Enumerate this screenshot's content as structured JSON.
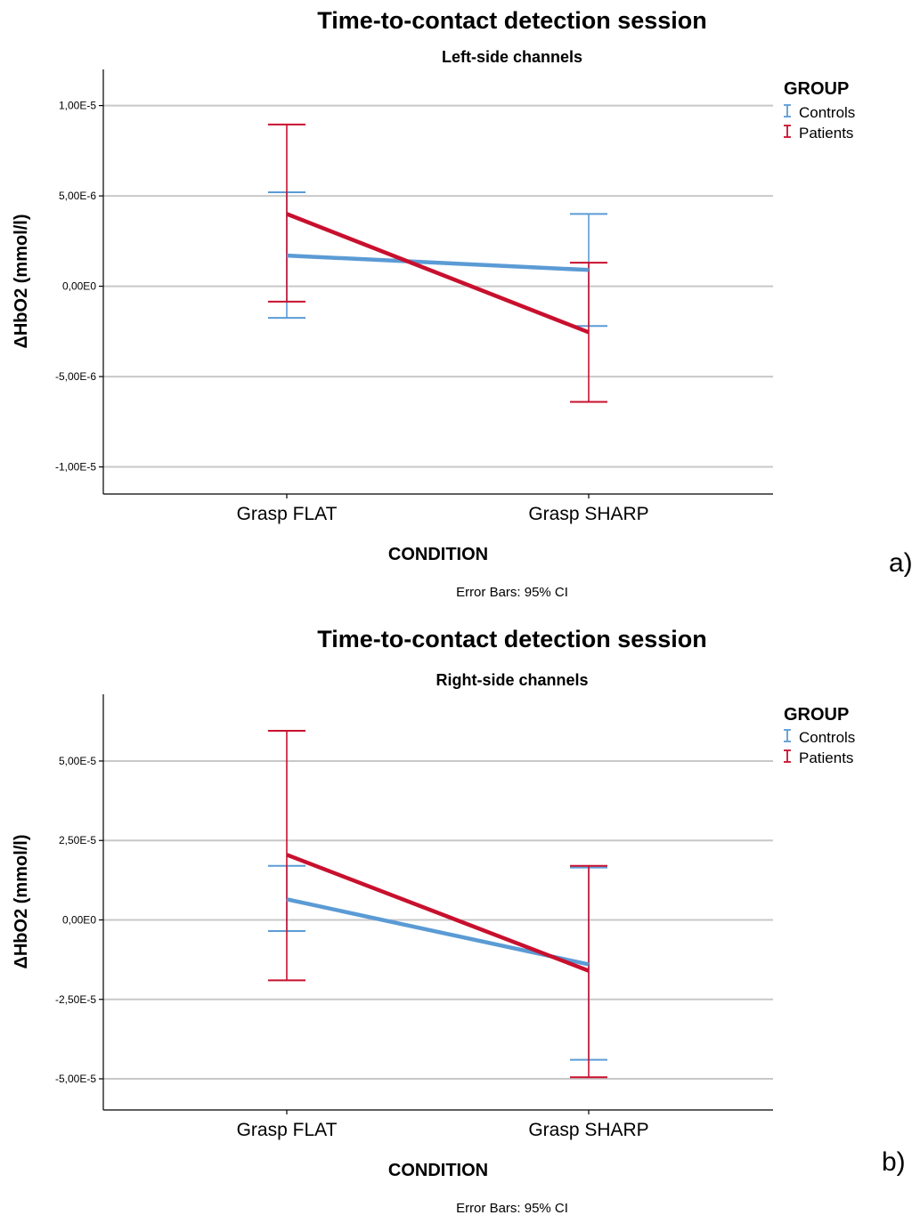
{
  "chart_data": [
    {
      "type": "line",
      "panel_label": "a)",
      "title": "Time-to-contact detection session",
      "subtitle": "Left-side channels",
      "xlabel": "CONDITION",
      "ylabel": "ΔHbO2 (mmol/l)",
      "categories": [
        "Grasp FLAT",
        "Grasp SHARP"
      ],
      "ylim": [
        -1.15e-05,
        1.2e-05
      ],
      "yticks": [
        1e-05,
        5e-06,
        0,
        -5e-06,
        -1e-05
      ],
      "ytick_labels": [
        "1,00E-5",
        "5,00E-6",
        "0,00E0",
        "-5,00E-6",
        "-1,00E-5"
      ],
      "grid": true,
      "legend": {
        "title": "GROUP",
        "placement": "right"
      },
      "footnote": "Error Bars: 95% CI",
      "series": [
        {
          "name": "Controls",
          "color": "#5b9bd5",
          "values": [
            1.7e-06,
            9e-07
          ],
          "ci_low": [
            -1.75e-06,
            -2.2e-06
          ],
          "ci_high": [
            5.2e-06,
            4e-06
          ]
        },
        {
          "name": "Patients",
          "color": "#c8102e",
          "values": [
            4e-06,
            -2.55e-06
          ],
          "ci_low": [
            -8.5e-07,
            -6.4e-06
          ],
          "ci_high": [
            8.95e-06,
            1.3e-06
          ]
        }
      ]
    },
    {
      "type": "line",
      "panel_label": "b)",
      "title": "Time-to-contact detection session",
      "subtitle": "Right-side channels",
      "xlabel": "CONDITION",
      "ylabel": "ΔHbO2 (mmol/l)",
      "categories": [
        "Grasp FLAT",
        "Grasp SHARP"
      ],
      "ylim": [
        -5.98e-05,
        7.1e-05
      ],
      "yticks": [
        5e-05,
        2.5e-05,
        0,
        -2.5e-05,
        -5e-05
      ],
      "ytick_labels": [
        "5,00E-5",
        "2,50E-5",
        "0,00E0",
        "-2,50E-5",
        "-5,00E-5"
      ],
      "grid": true,
      "legend": {
        "title": "GROUP",
        "placement": "right"
      },
      "footnote": "Error Bars: 95% CI",
      "series": [
        {
          "name": "Controls",
          "color": "#5b9bd5",
          "values": [
            6.5e-06,
            -1.4e-05
          ],
          "ci_low": [
            -3.5e-06,
            -4.4e-05
          ],
          "ci_high": [
            1.7e-05,
            1.65e-05
          ]
        },
        {
          "name": "Patients",
          "color": "#c8102e",
          "values": [
            2.05e-05,
            -1.6e-05
          ],
          "ci_low": [
            -1.9e-05,
            -4.95e-05
          ],
          "ci_high": [
            5.95e-05,
            1.7e-05
          ]
        }
      ]
    }
  ]
}
